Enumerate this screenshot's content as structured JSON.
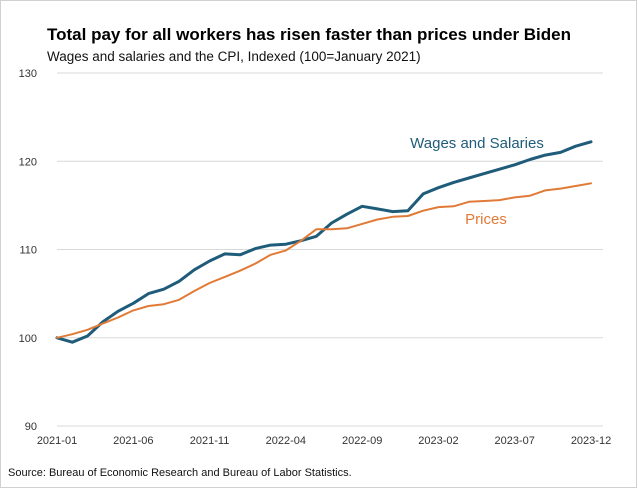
{
  "title": "Total pay for all workers has risen faster than prices under Biden",
  "subtitle": "Wages and salaries and the CPI, Indexed (100=January 2021)",
  "source": "Source: Bureau of Economic Research and Bureau of Labor Statistics.",
  "colors": {
    "wages": "#1f5c7a",
    "prices": "#e07a36",
    "grid": "#d9d9d9"
  },
  "chart_data": {
    "type": "line",
    "title": "Total pay for all workers has risen faster than prices under Biden",
    "subtitle": "Wages and salaries and the CPI, Indexed (100=January 2021)",
    "xlabel": "",
    "ylabel": "",
    "ylim": [
      90,
      130
    ],
    "yticks": [
      "90",
      "100",
      "110",
      "120",
      "130"
    ],
    "xticks": [
      "2021-01",
      "2021-06",
      "2021-11",
      "2022-04",
      "2022-09",
      "2023-02",
      "2023-07",
      "2023-12"
    ],
    "grid": true,
    "legend": "inline labels",
    "x": [
      "2021-01",
      "2021-02",
      "2021-03",
      "2021-04",
      "2021-05",
      "2021-06",
      "2021-07",
      "2021-08",
      "2021-09",
      "2021-10",
      "2021-11",
      "2021-12",
      "2022-01",
      "2022-02",
      "2022-03",
      "2022-04",
      "2022-05",
      "2022-06",
      "2022-07",
      "2022-08",
      "2022-09",
      "2022-10",
      "2022-11",
      "2022-12",
      "2023-01",
      "2023-02",
      "2023-03",
      "2023-04",
      "2023-05",
      "2023-06",
      "2023-07",
      "2023-08",
      "2023-09",
      "2023-10",
      "2023-11",
      "2023-12"
    ],
    "series": [
      {
        "name": "Wages and Salaries",
        "values": [
          100.0,
          99.5,
          100.2,
          101.8,
          103.0,
          103.9,
          105.0,
          105.5,
          106.4,
          107.7,
          108.7,
          109.5,
          109.4,
          110.1,
          110.5,
          110.6,
          111.0,
          111.5,
          113.0,
          114.0,
          114.9,
          114.6,
          114.3,
          114.4,
          116.3,
          117.0,
          117.6,
          118.1,
          118.6,
          119.1,
          119.6,
          120.2,
          120.7,
          121.0,
          121.7,
          122.2
        ]
      },
      {
        "name": "Prices",
        "values": [
          100.0,
          100.4,
          100.9,
          101.6,
          102.3,
          103.1,
          103.6,
          103.8,
          104.3,
          105.3,
          106.2,
          106.9,
          107.6,
          108.4,
          109.4,
          109.9,
          111.0,
          112.3,
          112.3,
          112.4,
          112.9,
          113.4,
          113.7,
          113.8,
          114.4,
          114.8,
          114.9,
          115.4,
          115.5,
          115.6,
          115.9,
          116.1,
          116.7,
          116.9,
          117.2,
          117.5
        ]
      }
    ]
  }
}
